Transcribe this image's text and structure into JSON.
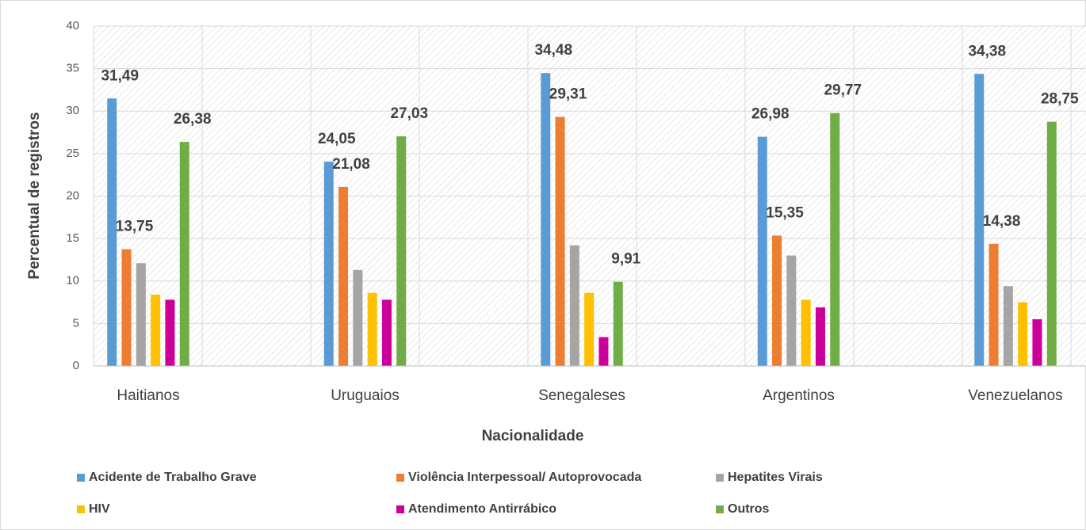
{
  "chart_data": {
    "type": "bar",
    "x_label": "Nacionalidade",
    "y_label": "Percentual de registros",
    "categories": [
      "Haitianos",
      "Uruguaios",
      "Senegaleses",
      "Argentinos",
      "Venezuelanos"
    ],
    "series": [
      {
        "name": "Acidente de Trabalho Grave",
        "color": "#5b9bd5",
        "values": [
          31.49,
          24.05,
          34.48,
          26.98,
          34.38
        ],
        "value_labels": [
          "31,49",
          "24,05",
          "34,48",
          "26,98",
          "34,38"
        ]
      },
      {
        "name": "Violência Interpessoal/ Autoprovocada",
        "color": "#ed7d31",
        "values": [
          13.75,
          21.08,
          29.31,
          15.35,
          14.38
        ],
        "value_labels": [
          "13,75",
          "21,08",
          "29,31",
          "15,35",
          "14,38"
        ]
      },
      {
        "name": "Hepatites Virais",
        "color": "#a5a5a5",
        "values": [
          12.1,
          11.3,
          14.2,
          13.0,
          9.4
        ],
        "value_labels": [
          null,
          null,
          null,
          null,
          null
        ]
      },
      {
        "name": "HIV",
        "color": "#ffc000",
        "values": [
          8.4,
          8.6,
          8.6,
          7.8,
          7.5
        ],
        "value_labels": [
          null,
          null,
          null,
          null,
          null
        ]
      },
      {
        "name": "Atendimento Antirrábico",
        "color": "#cc0099",
        "values": [
          7.8,
          7.8,
          3.4,
          6.9,
          5.5
        ],
        "value_labels": [
          null,
          null,
          null,
          null,
          null
        ]
      },
      {
        "name": "Outros",
        "color": "#70ad47",
        "values": [
          26.38,
          27.03,
          9.91,
          29.77,
          28.75
        ],
        "value_labels": [
          "26,38",
          "27,03",
          "9,91",
          "29,77",
          "28,75"
        ]
      }
    ],
    "ylim": [
      0,
      40
    ],
    "yticks": [
      0,
      5,
      10,
      15,
      20,
      25,
      30,
      35,
      40
    ],
    "grid": true,
    "legend": "bottom"
  }
}
